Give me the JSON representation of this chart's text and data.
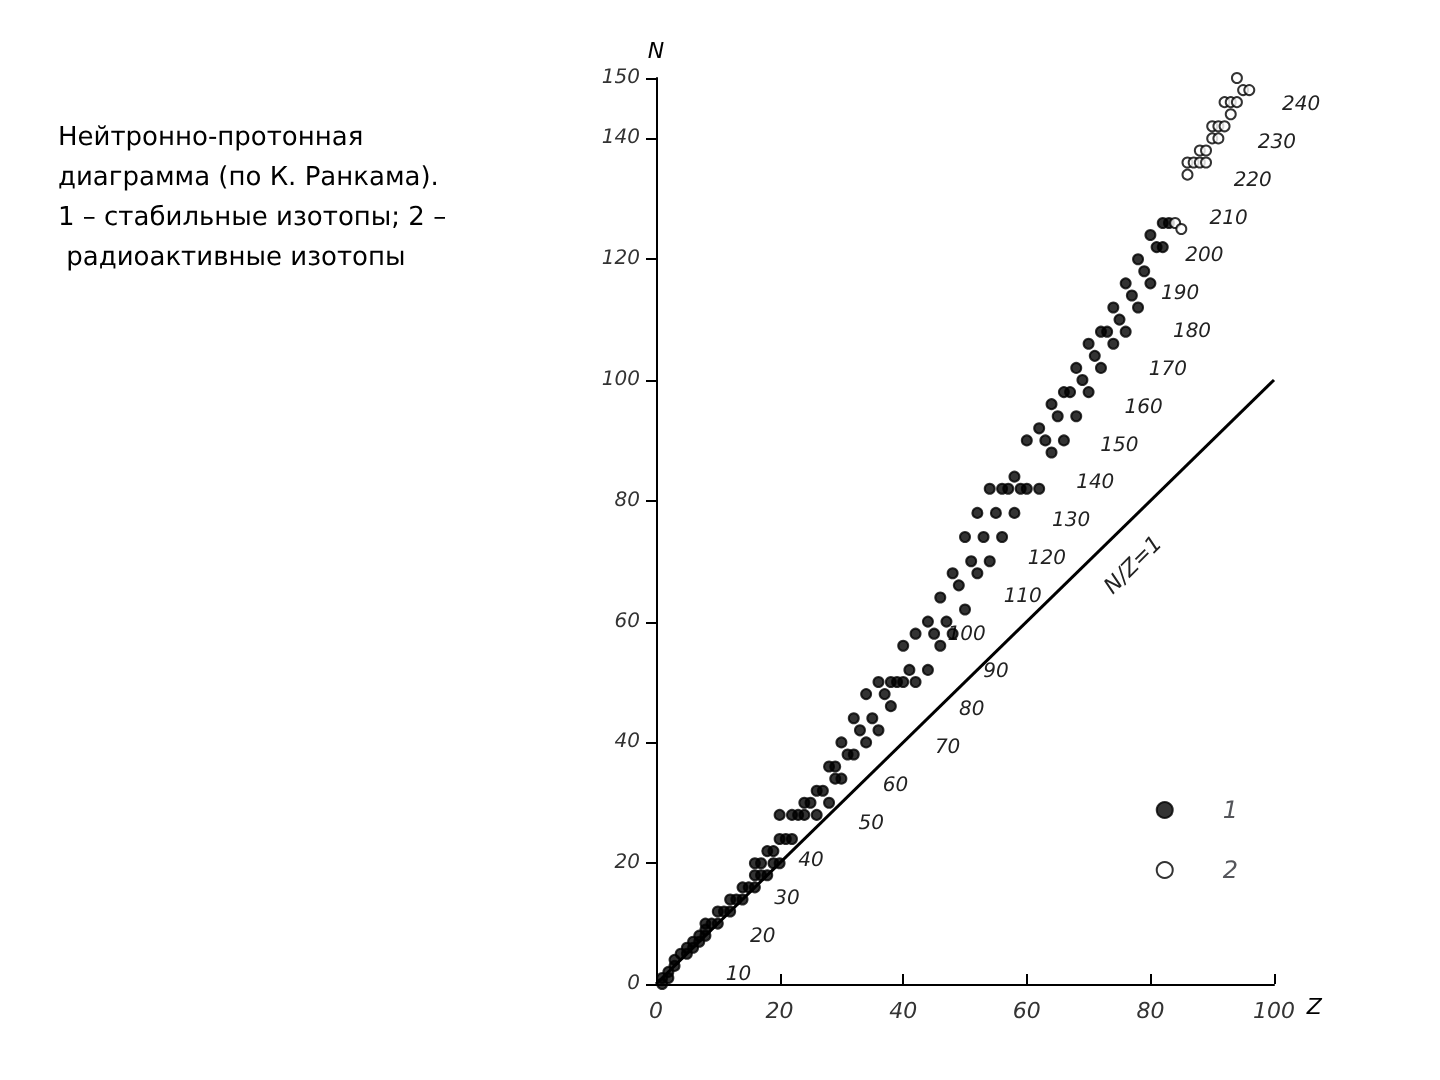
{
  "chart_data": {
    "type": "scatter",
    "title": "Нейтронно-протонная диаграмма (по К. Ранкама). 1 – стабильные изотопы; 2 – радиоактивные изотопы",
    "xlabel": "Z",
    "ylabel": "N",
    "xlim": [
      0,
      100
    ],
    "xticks": [
      0,
      20,
      40,
      60,
      80,
      100
    ],
    "ylim": [
      0,
      150
    ],
    "yticks": [
      0,
      20,
      40,
      60,
      80,
      100,
      120,
      140,
      150
    ],
    "grid": false,
    "legend": "right",
    "series": [
      {
        "name": "1",
        "marker": "circle",
        "color": "#000000",
        "x": [
          1,
          1,
          2,
          2,
          3,
          3,
          4,
          5,
          5,
          6,
          6,
          7,
          7,
          8,
          8,
          8,
          9,
          10,
          10,
          11,
          12,
          12,
          13,
          14,
          14,
          15,
          16,
          16,
          16,
          17,
          17,
          18,
          18,
          19,
          19,
          20,
          20,
          20,
          21,
          22,
          22,
          23,
          24,
          24,
          25,
          26,
          26,
          27,
          28,
          28,
          29,
          29,
          30,
          30,
          31,
          32,
          32,
          33,
          34,
          34,
          35,
          36,
          36,
          37,
          38,
          38,
          39,
          40,
          40,
          41,
          42,
          42,
          44,
          44,
          45,
          46,
          46,
          47,
          48,
          48,
          49,
          50,
          50,
          51,
          52,
          52,
          53,
          54,
          54,
          55,
          56,
          56,
          57,
          58,
          58,
          59,
          60,
          60,
          62,
          62,
          63,
          64,
          64,
          65,
          66,
          66,
          67,
          68,
          68,
          69,
          70,
          70,
          71,
          72,
          72,
          73,
          74,
          74,
          75,
          76,
          76,
          77,
          78,
          78,
          79,
          80,
          80,
          81,
          82,
          82,
          83
        ],
        "values": [
          0,
          1,
          1,
          2,
          3,
          4,
          5,
          5,
          6,
          6,
          7,
          7,
          8,
          8,
          9,
          10,
          10,
          10,
          12,
          12,
          12,
          14,
          14,
          14,
          16,
          16,
          16,
          18,
          20,
          18,
          20,
          18,
          22,
          20,
          22,
          20,
          24,
          28,
          24,
          24,
          28,
          28,
          28,
          30,
          30,
          28,
          32,
          32,
          30,
          36,
          34,
          36,
          34,
          40,
          38,
          38,
          44,
          42,
          40,
          48,
          44,
          42,
          50,
          48,
          46,
          50,
          50,
          50,
          56,
          52,
          50,
          58,
          52,
          60,
          58,
          56,
          64,
          60,
          58,
          68,
          66,
          62,
          74,
          70,
          68,
          78,
          74,
          70,
          82,
          78,
          74,
          82,
          82,
          78,
          84,
          82,
          82,
          90,
          82,
          92,
          90,
          88,
          96,
          94,
          90,
          98,
          98,
          94,
          102,
          100,
          98,
          106,
          104,
          102,
          108,
          108,
          106,
          112,
          110,
          108,
          116,
          114,
          112,
          120,
          118,
          116,
          124,
          122,
          122,
          126,
          126
        ]
      },
      {
        "name": "2",
        "marker": "circle",
        "color": "#ffffff",
        "x": [
          84,
          85,
          86,
          86,
          87,
          88,
          88,
          89,
          89,
          90,
          90,
          91,
          91,
          92,
          92,
          93,
          93,
          94,
          94,
          95,
          96
        ],
        "values": [
          126,
          125,
          134,
          136,
          136,
          136,
          138,
          136,
          138,
          140,
          142,
          140,
          142,
          142,
          146,
          144,
          146,
          146,
          150,
          148,
          148
        ]
      },
      {
        "name": "N/Z=1",
        "type": "line",
        "color": "#000000",
        "line_style": "solid",
        "marker": "none",
        "x": [
          0,
          100
        ],
        "values": [
          0,
          100
        ]
      }
    ],
    "annotations": [
      "10",
      "20",
      "30",
      "40",
      "50",
      "60",
      "70",
      "80",
      "90",
      "100",
      "110",
      "120",
      "130",
      "140",
      "150",
      "160",
      "170",
      "180",
      "190",
      "200",
      "210",
      "220",
      "230",
      "240"
    ]
  }
}
